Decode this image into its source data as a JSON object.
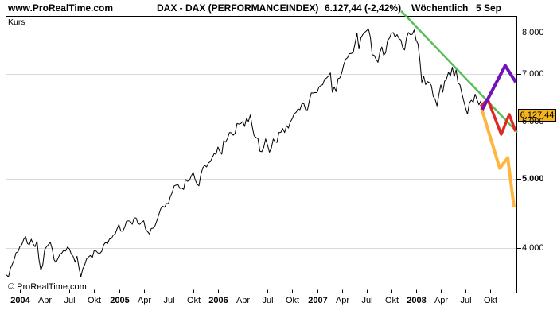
{
  "header": {
    "logo": "www.ProRealTime.com",
    "title": "DAX - DAX (PERFORMANCEINDEX)",
    "quote": "6.127,44 (-2,42%)",
    "timeframe": "Wöchentlich",
    "date": "5 Sep"
  },
  "chart": {
    "pane_label": "Kurs",
    "watermark": "© ProRealTime.com",
    "price_tag": "6.127,44",
    "colors": {
      "price_line": "#000000",
      "grid": "#d9d9d9",
      "frame": "#000000",
      "trendline_green": "#57be57",
      "scenario_purple": "#7312b8",
      "scenario_red": "#dc2a25",
      "scenario_orange": "#ffb640",
      "tag_background": "#f4b41e",
      "tag_text": "#000000"
    }
  },
  "chart_data": {
    "type": "line",
    "title": "DAX - DAX (PERFORMANCEINDEX)",
    "timeframe": "Wöchentlich",
    "last_value": 6127.44,
    "change_pct": -2.42,
    "x_start": "2003-11 (weekly closes)",
    "x_end": "2008-09-05",
    "y_scale": "log",
    "ylim": [
      3455,
      8480
    ],
    "grid": "horizontal-only",
    "y_ticks": [
      {
        "label": "8.000",
        "value": 8000,
        "bold": false
      },
      {
        "label": "7.000",
        "value": 7000,
        "bold": false
      },
      {
        "label": "6.000",
        "value": 6000,
        "bold": false
      },
      {
        "label": "5.000",
        "value": 5000,
        "bold": true
      },
      {
        "label": "4.000",
        "value": 4000,
        "bold": false
      }
    ],
    "x_ticks": [
      {
        "label": "2004",
        "bold": true,
        "month": 0
      },
      {
        "label": "Apr",
        "bold": false,
        "month": 3
      },
      {
        "label": "Jul",
        "bold": false,
        "month": 6
      },
      {
        "label": "Okt",
        "bold": false,
        "month": 9
      },
      {
        "label": "2005",
        "bold": true,
        "month": 12
      },
      {
        "label": "Apr",
        "bold": false,
        "month": 15
      },
      {
        "label": "Jul",
        "bold": false,
        "month": 18
      },
      {
        "label": "Okt",
        "bold": false,
        "month": 21
      },
      {
        "label": "2006",
        "bold": true,
        "month": 24
      },
      {
        "label": "Apr",
        "bold": false,
        "month": 27
      },
      {
        "label": "Jul",
        "bold": false,
        "month": 30
      },
      {
        "label": "Okt",
        "bold": false,
        "month": 33
      },
      {
        "label": "2007",
        "bold": true,
        "month": 36
      },
      {
        "label": "Apr",
        "bold": false,
        "month": 39
      },
      {
        "label": "Jul",
        "bold": false,
        "month": 42
      },
      {
        "label": "Okt",
        "bold": false,
        "month": 45
      },
      {
        "label": "2008",
        "bold": true,
        "month": 48
      },
      {
        "label": "Apr",
        "bold": false,
        "month": 51
      },
      {
        "label": "Jul",
        "bold": false,
        "month": 54
      },
      {
        "label": "Okt",
        "bold": false,
        "month": 57
      }
    ],
    "series": [
      {
        "name": "DAX weekly close",
        "values": [
          3670,
          3644,
          3746,
          3796,
          3856,
          3941,
          3952,
          4019,
          4045,
          4111,
          4151,
          4058,
          4045,
          4115,
          4053,
          4018,
          4091,
          3861,
          3726,
          3788,
          3980,
          4017,
          4046,
          4073,
          3985,
          3853,
          3818,
          3867,
          3921,
          3934,
          3973,
          3962,
          4014,
          3990,
          3921,
          3893,
          3823,
          3895,
          3757,
          3647,
          3742,
          3789,
          3862,
          3885,
          3906,
          3874,
          3967,
          3963,
          3937,
          3930,
          3960,
          4040,
          4075,
          4057,
          4116,
          4122,
          4170,
          4185,
          4256,
          4316,
          4225,
          4222,
          4276,
          4362,
          4367,
          4358,
          4318,
          4408,
          4408,
          4328,
          4318,
          4348,
          4368,
          4249,
          4218,
          4184,
          4260,
          4264,
          4300,
          4374,
          4460,
          4542,
          4575,
          4560,
          4617,
          4613,
          4721,
          4786,
          4886,
          4897,
          4906,
          4845,
          4851,
          4830,
          4988,
          4958,
          4971,
          5044,
          5105,
          4986,
          4914,
          4886,
          5066,
          5177,
          5221,
          5193,
          5262,
          5282,
          5353,
          5419,
          5408,
          5536,
          5455,
          5410,
          5650,
          5623,
          5690,
          5801,
          5796,
          5751,
          5789,
          5970,
          5960,
          5970,
          6009,
          5914,
          6069,
          6009,
          6136,
          5912,
          5738,
          5710,
          5687,
          5464,
          5452,
          5529,
          5683,
          5572,
          5444,
          5516,
          5682,
          5630,
          5620,
          5802,
          5804,
          5876,
          5800,
          5929,
          5884,
          6004,
          6064,
          6163,
          6189,
          6262,
          6241,
          6359,
          6372,
          6241,
          6242,
          6427,
          6588,
          6587,
          6597,
          6594,
          6714,
          6747,
          6767,
          6887,
          6911,
          6957,
          7027,
          6603,
          6716,
          6617,
          6899,
          6917,
          7028,
          7212,
          7342,
          7379,
          7476,
          7479,
          7505,
          7739,
          7987,
          7590,
          7863,
          7949,
          8007,
          8050,
          8093,
          7875,
          7451,
          7435,
          7343,
          7270,
          7507,
          7638,
          7436,
          7499,
          7794,
          7861,
          7979,
          8002,
          7884,
          7949,
          7849,
          7812,
          7612,
          7567,
          7870,
          8002,
          7948,
          7957,
          8067,
          7808,
          7714,
          7314,
          6816,
          6951,
          6767,
          6832,
          6807,
          6748,
          6514,
          6452,
          6319,
          6559,
          6763,
          6603,
          6843,
          6897,
          7043,
          6955,
          7157,
          6944,
          7096,
          6803,
          6765,
          6578,
          6421,
          6272,
          6153,
          6382,
          6437,
          6396,
          6561,
          6446,
          6342,
          6422,
          6127
        ]
      }
    ],
    "overlays": [
      {
        "name": "downtrend-line",
        "color_key": "trendline_green",
        "width": 2.5,
        "points_wp": [
          [
            207.1,
            8578
          ],
          [
            268.1,
            5808
          ]
        ]
      },
      {
        "name": "scenario-bearish",
        "color_key": "scenario_orange",
        "width": 4,
        "points_wp": [
          [
            249.3,
            6276
          ],
          [
            258.9,
            5172
          ],
          [
            263.1,
            5347
          ],
          [
            266.4,
            4560
          ]
        ]
      },
      {
        "name": "scenario-sideways",
        "color_key": "scenario_red",
        "width": 3.5,
        "points_wp": [
          [
            248.9,
            6308
          ],
          [
            252.6,
            6456
          ],
          [
            259.7,
            5766
          ],
          [
            263.9,
            6148
          ],
          [
            267.2,
            5825
          ]
        ]
      },
      {
        "name": "scenario-bullish",
        "color_key": "scenario_purple",
        "width": 4,
        "points_wp": [
          [
            249.7,
            6243
          ],
          [
            261.8,
            7194
          ],
          [
            267.3,
            6822
          ]
        ]
      }
    ]
  }
}
